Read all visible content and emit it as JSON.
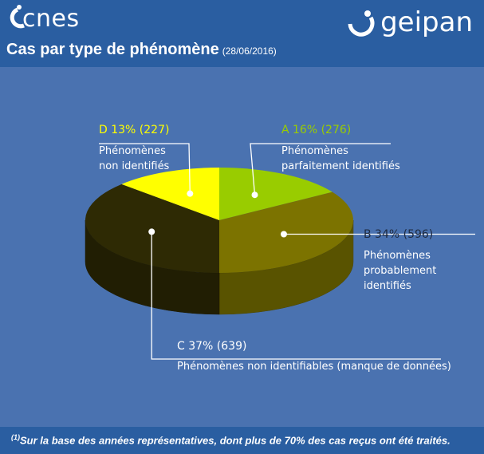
{
  "header": {
    "cnes_logo": "cnes",
    "geipan_logo": "geipan",
    "title": "Cas par type de phénomène",
    "title_date": "(28/06/2016)"
  },
  "footer": {
    "footnote_mark": "(1)",
    "footnote": "Sur la base des années représentatives, dont plus de 70% des cas reçus ont été traités."
  },
  "colors": {
    "A": "#99cc00",
    "B": "#7c7300",
    "C": "#2e2a04",
    "D": "#ffff00",
    "header_bg": "#2a5ea1",
    "plot_bg": "#4a72b0"
  },
  "chart_data": {
    "type": "pie",
    "title": "Cas par type de phénomène",
    "slices": [
      {
        "key": "A",
        "percent": 16,
        "count": 276,
        "head": "A 16% (276)",
        "desc": [
          "Phénomènes",
          "parfaitement identifiés"
        ]
      },
      {
        "key": "B",
        "percent": 34,
        "count": 596,
        "head": "B 34% (596)",
        "desc": [
          "Phénomènes",
          "probablement",
          "identifiés"
        ]
      },
      {
        "key": "C",
        "percent": 37,
        "count": 639,
        "head": "C 37% (639)",
        "desc": [
          "Phénomènes non identifiables (manque de données)"
        ]
      },
      {
        "key": "D",
        "percent": 13,
        "count": 227,
        "head": "D 13% (227)",
        "desc": [
          "Phénomènes",
          "non identifiés"
        ]
      }
    ]
  }
}
